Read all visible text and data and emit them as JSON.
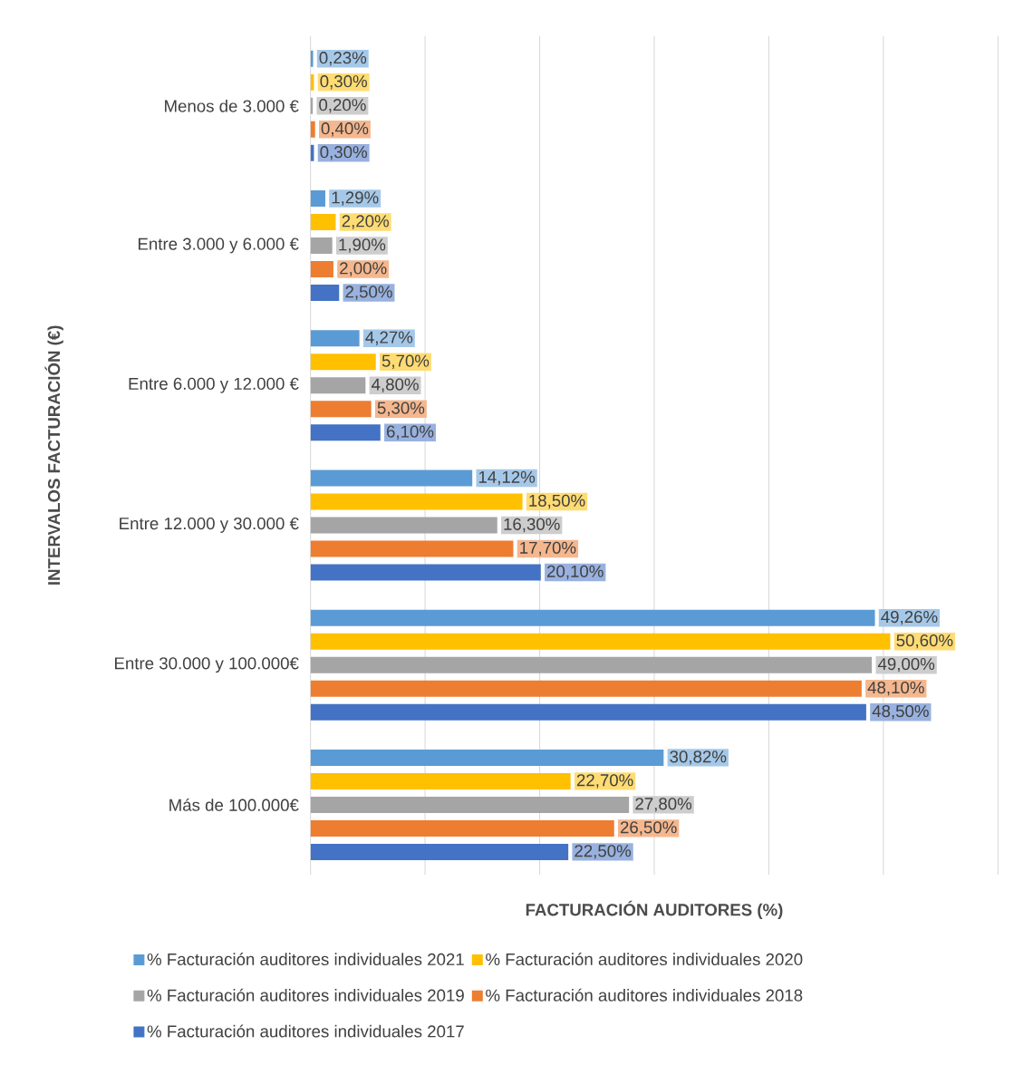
{
  "chart_data": {
    "type": "bar",
    "orientation": "horizontal",
    "xlabel": "FACTURACIÓN AUDITORES (%)",
    "ylabel": "INTERVALOS FACTURACIÓN (€)",
    "categories": [
      "Menos de 3.000 €",
      "Entre 3.000 y 6.000 €",
      "Entre 6.000 y 12.000 €",
      "Entre 12.000 y 30.000 €",
      "Entre 30.000 y 100.000€",
      "Más de 100.000€"
    ],
    "series": [
      {
        "name": "% Facturación auditores individuales 2021",
        "color": "#5b9bd5",
        "values": [
          0.23,
          1.29,
          4.27,
          14.12,
          49.26,
          30.82
        ],
        "value_labels": [
          "0,23%",
          "1,29%",
          "4,27%",
          "14,12%",
          "49,26%",
          "30,82%"
        ]
      },
      {
        "name": "% Facturación auditores individuales 2020",
        "color": "#ffc000",
        "values": [
          0.3,
          2.2,
          5.7,
          18.5,
          50.6,
          22.7
        ],
        "value_labels": [
          "0,30%",
          "2,20%",
          "5,70%",
          "18,50%",
          "50,60%",
          "22,70%"
        ]
      },
      {
        "name": "% Facturación auditores individuales 2019",
        "color": "#a5a5a5",
        "values": [
          0.2,
          1.9,
          4.8,
          16.3,
          49.0,
          27.8
        ],
        "value_labels": [
          "0,20%",
          "1,90%",
          "4,80%",
          "16,30%",
          "49,00%",
          "27,80%"
        ]
      },
      {
        "name": "% Facturación auditores individuales 2018",
        "color": "#ed7d31",
        "values": [
          0.4,
          2.0,
          5.3,
          17.7,
          48.1,
          26.5
        ],
        "value_labels": [
          "0,40%",
          "2,00%",
          "5,30%",
          "17,70%",
          "48,10%",
          "26,50%"
        ]
      },
      {
        "name": "% Facturación auditores individuales 2017",
        "color": "#4472c4",
        "values": [
          0.3,
          2.5,
          6.1,
          20.1,
          48.5,
          22.5
        ],
        "value_labels": [
          "0,30%",
          "2,50%",
          "6,10%",
          "20,10%",
          "48,50%",
          "22,50%"
        ]
      }
    ],
    "xlim": [
      0,
      60
    ],
    "xticks": [
      {
        "value": 0,
        "label": null
      },
      {
        "value": 10,
        "label": null
      },
      {
        "value": 20,
        "label": null
      },
      {
        "value": 30,
        "label": null
      },
      {
        "value": 40,
        "label": null
      },
      {
        "value": 50,
        "label": null
      },
      {
        "value": 60,
        "label": null
      }
    ],
    "tick_labels": "y",
    "grid": "x",
    "legend": "bottom"
  }
}
